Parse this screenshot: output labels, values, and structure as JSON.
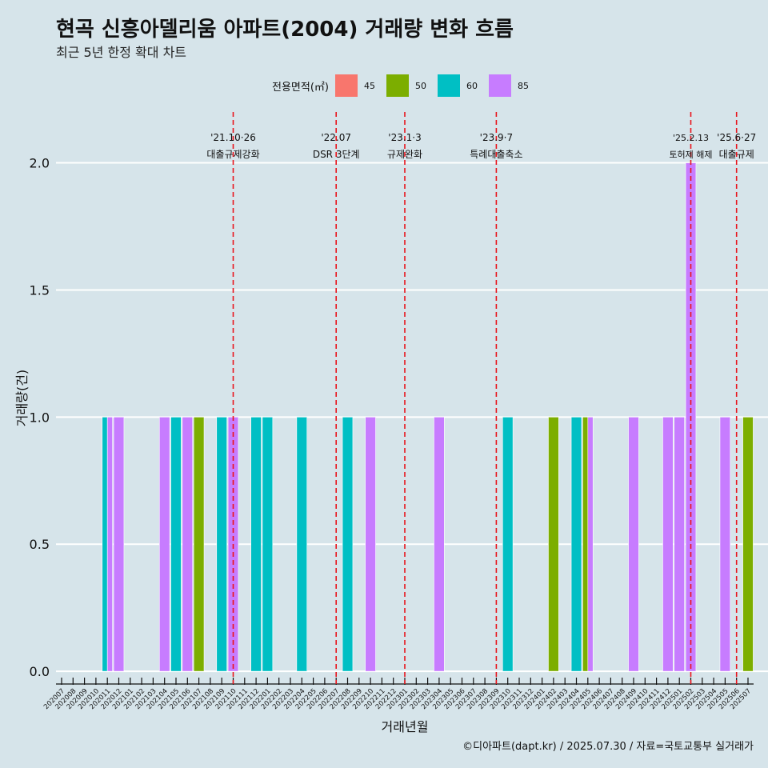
{
  "title": "현곡 신흥아델리움 아파트(2004) 거래량 변화 흐름",
  "subtitle": "최근 5년 한정 확대 차트",
  "caption": "©디아파트(dapt.kr) / 2025.07.30 / 자료=국토교통부 실거래가",
  "legend": {
    "title": "전용면적(㎡)",
    "items": [
      {
        "label": "45",
        "color": "#f8766d"
      },
      {
        "label": "50",
        "color": "#7cae00"
      },
      {
        "label": "60",
        "color": "#00bfc4"
      },
      {
        "label": "85",
        "color": "#c77cff"
      }
    ]
  },
  "chart_data": {
    "type": "bar",
    "xlabel": "거래년월",
    "ylabel": "거래량(건)",
    "ylim": [
      -0.05,
      2.2
    ],
    "yticks": [
      "0.0",
      "0.5",
      "1.0",
      "1.5",
      "2.0"
    ],
    "grid": true,
    "legend_position": "top",
    "categories": [
      "202007",
      "202008",
      "202009",
      "202010",
      "202011",
      "202012",
      "202101",
      "202102",
      "202103",
      "202104",
      "202105",
      "202106",
      "202107",
      "202108",
      "202109",
      "202110",
      "202111",
      "202112",
      "202201",
      "202202",
      "202203",
      "202204",
      "202205",
      "202206",
      "202207",
      "202208",
      "202209",
      "202210",
      "202211",
      "202212",
      "202301",
      "202302",
      "202303",
      "202304",
      "202305",
      "202306",
      "202307",
      "202308",
      "202309",
      "202310",
      "202311",
      "202312",
      "202401",
      "202402",
      "202403",
      "202404",
      "202405",
      "202406",
      "202407",
      "202408",
      "202409",
      "202410",
      "202411",
      "202412",
      "202501",
      "202502",
      "202503",
      "202504",
      "202505",
      "202506",
      "202507"
    ],
    "bars": [
      {
        "month": "202011",
        "area": "60",
        "value": 1
      },
      {
        "month": "202011",
        "area": "85",
        "value": 1
      },
      {
        "month": "202012",
        "area": "85",
        "value": 1
      },
      {
        "month": "202104",
        "area": "85",
        "value": 1
      },
      {
        "month": "202105",
        "area": "60",
        "value": 1
      },
      {
        "month": "202106",
        "area": "85",
        "value": 1
      },
      {
        "month": "202107",
        "area": "50",
        "value": 1
      },
      {
        "month": "202109",
        "area": "60",
        "value": 1
      },
      {
        "month": "202110",
        "area": "85",
        "value": 1
      },
      {
        "month": "202112",
        "area": "60",
        "value": 1
      },
      {
        "month": "202201",
        "area": "60",
        "value": 1
      },
      {
        "month": "202204",
        "area": "60",
        "value": 1
      },
      {
        "month": "202208",
        "area": "60",
        "value": 1
      },
      {
        "month": "202210",
        "area": "85",
        "value": 1
      },
      {
        "month": "202304",
        "area": "85",
        "value": 1
      },
      {
        "month": "202310",
        "area": "60",
        "value": 1
      },
      {
        "month": "202402",
        "area": "50",
        "value": 1
      },
      {
        "month": "202404",
        "area": "60",
        "value": 1
      },
      {
        "month": "202405",
        "area": "50",
        "value": 1
      },
      {
        "month": "202405",
        "area": "85",
        "value": 1
      },
      {
        "month": "202409",
        "area": "85",
        "value": 1
      },
      {
        "month": "202412",
        "area": "85",
        "value": 1
      },
      {
        "month": "202501",
        "area": "85",
        "value": 1
      },
      {
        "month": "202502",
        "area": "85",
        "value": 2
      },
      {
        "month": "202505",
        "area": "85",
        "value": 1
      },
      {
        "month": "202507",
        "area": "50",
        "value": 1
      }
    ],
    "events": [
      {
        "month": "202110",
        "date": "'21.10·26",
        "label": "대출규제강화"
      },
      {
        "month": "202207",
        "date": "'22.07",
        "label": "DSR 3단계"
      },
      {
        "month": "202301",
        "date": "'23.1·3",
        "label": "규제완화"
      },
      {
        "month": "202309",
        "date": "'23.9·7",
        "label": "특례대출축소"
      },
      {
        "month": "202502",
        "date": "'25.2.13",
        "label": "토허제 해제"
      },
      {
        "month": "202506",
        "date": "'25.6·27",
        "label": "대출규제"
      }
    ]
  }
}
